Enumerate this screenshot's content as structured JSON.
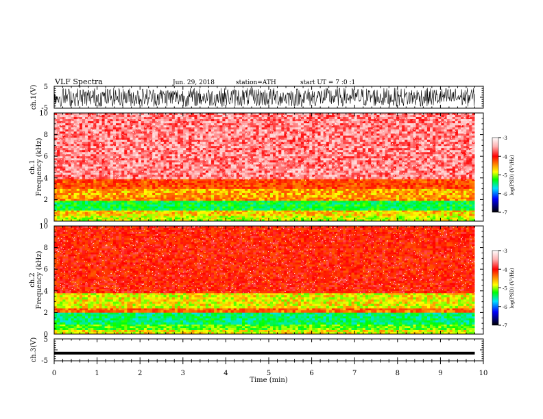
{
  "header": {
    "title": "VLF Spectra",
    "date": "Jun. 29, 2018",
    "station": "station=ATH",
    "start_ut": "start UT = 7 :0 :1"
  },
  "chart_data": [
    {
      "type": "line",
      "name": "ch1-waveform",
      "ylabel": "ch.1(V)",
      "ylim": [
        -5,
        5
      ],
      "yticks": [
        "5",
        "-5"
      ],
      "xlim": [
        0,
        10
      ],
      "description_of_signal": "dense noise filling about -4 to 4 V from 0 to 9.8 min"
    },
    {
      "type": "heatmap",
      "name": "ch1-spectrogram",
      "ylabel": "ch.1\nFrequency (kHz)",
      "ylim": [
        0,
        10
      ],
      "yticks": [
        "10",
        "8",
        "6",
        "4",
        "2",
        "0"
      ],
      "xlim": [
        0,
        10
      ],
      "data_end_min": 9.8,
      "bands_kHz_to_log_psd": [
        {
          "from": 0.0,
          "to": 0.5,
          "level": -4.6
        },
        {
          "from": 0.5,
          "to": 1.0,
          "level": -4.4
        },
        {
          "from": 1.0,
          "to": 1.9,
          "level": -5.0
        },
        {
          "from": 1.9,
          "to": 2.2,
          "level": -4.2
        },
        {
          "from": 2.2,
          "to": 3.0,
          "level": -4.3
        },
        {
          "from": 3.0,
          "to": 3.9,
          "level": -4.0
        },
        {
          "from": 3.9,
          "to": 10.0,
          "level": -3.4
        }
      ],
      "colorbar": {
        "label": "log(PSD) (V²/Hz)",
        "ticks": [
          "-3",
          "-4",
          "-5",
          "-6",
          "-7"
        ],
        "range": [
          -7,
          -3
        ]
      }
    },
    {
      "type": "heatmap",
      "name": "ch2-spectrogram",
      "ylabel": "ch.2\nFrequency (kHz)",
      "ylim": [
        0,
        10
      ],
      "yticks": [
        "10",
        "8",
        "6",
        "4",
        "2",
        "0"
      ],
      "xlim": [
        0,
        10
      ],
      "data_end_min": 9.8,
      "bands_kHz_to_log_psd": [
        {
          "from": 0.0,
          "to": 0.4,
          "level": -4.5
        },
        {
          "from": 0.4,
          "to": 0.9,
          "level": -4.8
        },
        {
          "from": 0.9,
          "to": 2.0,
          "level": -5.1
        },
        {
          "from": 2.0,
          "to": 2.4,
          "level": -4.1
        },
        {
          "from": 2.4,
          "to": 3.8,
          "level": -4.5
        },
        {
          "from": 3.8,
          "to": 10.0,
          "level": -3.8
        }
      ],
      "colorbar": {
        "label": "log(PSD) (V²/Hz)",
        "ticks": [
          "-3",
          "-4",
          "-5",
          "-6",
          "-7"
        ],
        "range": [
          -7,
          -3
        ]
      }
    },
    {
      "type": "line",
      "name": "ch3-waveform",
      "ylabel": "ch.3(V)",
      "ylim": [
        -5,
        5
      ],
      "yticks": [
        "5",
        "-5"
      ],
      "xlim": [
        0,
        10
      ],
      "value_approx_V": -1.5
    }
  ],
  "xaxis": {
    "label": "Time (min)",
    "ticks": [
      "0",
      "1",
      "2",
      "3",
      "4",
      "5",
      "6",
      "7",
      "8",
      "9",
      "10"
    ]
  },
  "colors": {
    "white": "#ffffff",
    "red": "#ff0000",
    "yellow": "#ffff00",
    "green": "#00ff00",
    "cyan": "#00c0ff",
    "blue": "#0000ff",
    "black": "#000000"
  }
}
